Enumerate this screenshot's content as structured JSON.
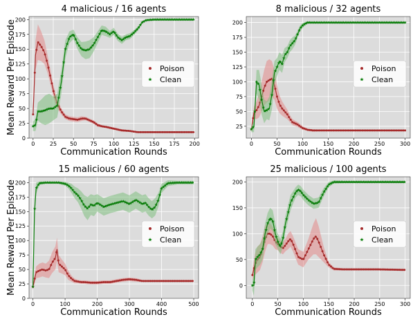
{
  "colors": {
    "poison": "#a52a2a",
    "clean": "#0a7d0a",
    "poison_band": "#e38a8a",
    "clean_band": "#7fbf7f",
    "panel_bg": "#dcdcdc",
    "grid": "#ffffff"
  },
  "chart_data": [
    {
      "type": "line",
      "title": "4 malicious / 16 agents",
      "xlabel": "Communication Rounds",
      "ylabel": "Mean Reward Per Episode",
      "xlim": [
        -5,
        205
      ],
      "ylim": [
        0,
        205
      ],
      "xticks": [
        0,
        25,
        50,
        75,
        100,
        125,
        150,
        175,
        200
      ],
      "yticks": [
        0,
        25,
        50,
        75,
        100,
        125,
        150,
        175,
        200
      ],
      "grid": true,
      "legend": "right",
      "series": [
        {
          "name": "Poison",
          "marker": "dot",
          "x": [
            0,
            3,
            6,
            10,
            14,
            18,
            22,
            26,
            30,
            35,
            40,
            45,
            50,
            55,
            60,
            65,
            70,
            75,
            80,
            85,
            90,
            100,
            110,
            120,
            130,
            140,
            160,
            180,
            200
          ],
          "y": [
            40,
            140,
            162,
            155,
            145,
            125,
            100,
            75,
            58,
            45,
            36,
            33,
            32,
            31,
            33,
            33,
            30,
            27,
            22,
            20,
            19,
            16,
            13,
            12,
            10,
            10,
            10,
            10,
            10
          ],
          "band": [
            5,
            25,
            30,
            25,
            20,
            15,
            12,
            10,
            8,
            5,
            4,
            4,
            4,
            4,
            4,
            3,
            3,
            3,
            3,
            2,
            2,
            2,
            2,
            1,
            1,
            1,
            1,
            1,
            1
          ]
        },
        {
          "name": "Clean",
          "marker": "star",
          "x": [
            0,
            3,
            6,
            10,
            15,
            20,
            25,
            30,
            35,
            40,
            45,
            50,
            55,
            60,
            65,
            70,
            75,
            80,
            85,
            90,
            95,
            100,
            105,
            110,
            115,
            120,
            125,
            130,
            135,
            140,
            150,
            160,
            180,
            200
          ],
          "y": [
            20,
            22,
            45,
            45,
            47,
            50,
            50,
            55,
            95,
            150,
            170,
            175,
            160,
            150,
            148,
            150,
            158,
            170,
            182,
            180,
            175,
            180,
            170,
            165,
            170,
            172,
            178,
            185,
            195,
            199,
            200,
            200,
            200,
            200
          ],
          "band": [
            8,
            10,
            15,
            20,
            25,
            25,
            20,
            20,
            20,
            15,
            10,
            8,
            10,
            12,
            15,
            15,
            12,
            10,
            8,
            8,
            6,
            6,
            6,
            6,
            5,
            5,
            4,
            3,
            2,
            1,
            1,
            1,
            1,
            1
          ]
        }
      ]
    },
    {
      "type": "line",
      "title": "8 malicious / 32 agents",
      "xlabel": "Communication Rounds",
      "ylabel": "",
      "xlim": [
        -10,
        310
      ],
      "ylim": [
        5,
        210
      ],
      "xticks": [
        0,
        50,
        100,
        150,
        200,
        250,
        300
      ],
      "yticks": [
        25,
        50,
        75,
        100,
        125,
        150,
        175,
        200
      ],
      "grid": true,
      "legend": "right",
      "series": [
        {
          "name": "Poison",
          "marker": "dot",
          "x": [
            0,
            5,
            10,
            15,
            20,
            25,
            30,
            35,
            40,
            45,
            50,
            55,
            60,
            65,
            70,
            75,
            80,
            90,
            100,
            110,
            120,
            140,
            160,
            200,
            250,
            300
          ],
          "y": [
            20,
            48,
            52,
            60,
            75,
            90,
            100,
            103,
            105,
            95,
            75,
            62,
            55,
            50,
            45,
            38,
            32,
            28,
            22,
            19,
            18,
            18,
            18,
            18,
            18,
            18
          ],
          "band": [
            5,
            10,
            15,
            20,
            25,
            30,
            35,
            35,
            30,
            25,
            20,
            15,
            12,
            10,
            8,
            6,
            5,
            4,
            3,
            2,
            2,
            1,
            1,
            1,
            1,
            1
          ]
        },
        {
          "name": "Clean",
          "marker": "star",
          "x": [
            0,
            5,
            10,
            15,
            20,
            25,
            30,
            35,
            40,
            45,
            50,
            55,
            60,
            65,
            70,
            75,
            80,
            85,
            90,
            95,
            100,
            105,
            110,
            120,
            140,
            160,
            200,
            250,
            300
          ],
          "y": [
            20,
            25,
            100,
            95,
            70,
            50,
            52,
            55,
            78,
            115,
            125,
            135,
            130,
            145,
            150,
            160,
            165,
            170,
            180,
            190,
            195,
            198,
            200,
            200,
            200,
            200,
            200,
            200,
            200
          ],
          "band": [
            5,
            10,
            20,
            25,
            25,
            20,
            15,
            20,
            25,
            20,
            15,
            15,
            15,
            12,
            10,
            10,
            10,
            8,
            6,
            5,
            4,
            3,
            2,
            1,
            1,
            1,
            1,
            1,
            1
          ]
        }
      ]
    },
    {
      "type": "line",
      "title": "15 malicious / 60 agents",
      "xlabel": "Communication Rounds",
      "ylabel": "Mean Reward Per Episode",
      "xlim": [
        -12,
        515
      ],
      "ylim": [
        0,
        210
      ],
      "xticks": [
        0,
        100,
        200,
        300,
        400,
        500
      ],
      "yticks": [
        0,
        25,
        50,
        75,
        100,
        125,
        150,
        175,
        200
      ],
      "grid": true,
      "legend": "right",
      "series": [
        {
          "name": "Poison",
          "marker": "dot",
          "x": [
            0,
            10,
            20,
            30,
            40,
            50,
            60,
            70,
            75,
            80,
            90,
            100,
            110,
            120,
            130,
            140,
            150,
            160,
            180,
            200,
            220,
            240,
            260,
            280,
            300,
            320,
            340,
            360,
            400,
            450,
            500
          ],
          "y": [
            20,
            45,
            48,
            50,
            48,
            50,
            62,
            70,
            85,
            60,
            55,
            50,
            40,
            34,
            30,
            29,
            28,
            28,
            27,
            27,
            28,
            28,
            30,
            32,
            33,
            32,
            30,
            30,
            30,
            30,
            30
          ],
          "band": [
            5,
            10,
            12,
            12,
            12,
            15,
            18,
            20,
            20,
            15,
            12,
            10,
            8,
            5,
            4,
            3,
            3,
            3,
            3,
            3,
            3,
            3,
            3,
            3,
            3,
            3,
            2,
            2,
            2,
            2,
            2
          ]
        },
        {
          "name": "Clean",
          "marker": "star",
          "x": [
            0,
            5,
            10,
            20,
            40,
            60,
            80,
            100,
            110,
            120,
            130,
            140,
            150,
            160,
            170,
            180,
            190,
            200,
            220,
            240,
            260,
            280,
            300,
            320,
            340,
            350,
            360,
            370,
            380,
            390,
            400,
            420,
            450,
            500
          ],
          "y": [
            20,
            150,
            190,
            199,
            200,
            200,
            200,
            198,
            195,
            190,
            183,
            178,
            170,
            160,
            155,
            162,
            160,
            165,
            158,
            162,
            165,
            168,
            163,
            170,
            163,
            165,
            158,
            153,
            158,
            170,
            190,
            199,
            200,
            200
          ],
          "band": [
            5,
            20,
            10,
            3,
            2,
            2,
            2,
            3,
            5,
            8,
            10,
            12,
            15,
            18,
            20,
            18,
            18,
            15,
            15,
            15,
            15,
            15,
            15,
            15,
            15,
            15,
            15,
            15,
            15,
            12,
            8,
            5,
            3,
            3
          ]
        }
      ]
    },
    {
      "type": "line",
      "title": "25 malicious / 100 agents",
      "xlabel": "Communication Rounds",
      "ylabel": "",
      "xlim": [
        -12,
        310
      ],
      "ylim": [
        -25,
        210
      ],
      "xticks": [
        0,
        50,
        100,
        150,
        200,
        250,
        300
      ],
      "yticks": [
        0,
        50,
        100,
        150,
        200
      ],
      "grid": true,
      "legend": "right",
      "series": [
        {
          "name": "Poison",
          "marker": "dot",
          "x": [
            0,
            5,
            10,
            15,
            20,
            25,
            30,
            35,
            40,
            45,
            50,
            55,
            60,
            65,
            70,
            75,
            80,
            90,
            100,
            110,
            120,
            125,
            130,
            140,
            150,
            160,
            180,
            200,
            250,
            300
          ],
          "y": [
            20,
            40,
            50,
            55,
            70,
            90,
            100,
            100,
            95,
            85,
            80,
            75,
            72,
            78,
            85,
            90,
            80,
            55,
            50,
            70,
            90,
            95,
            85,
            60,
            40,
            32,
            31,
            31,
            31,
            30
          ],
          "band": [
            10,
            20,
            25,
            25,
            25,
            25,
            20,
            20,
            18,
            15,
            12,
            12,
            12,
            12,
            15,
            15,
            15,
            15,
            15,
            20,
            30,
            35,
            30,
            15,
            5,
            3,
            2,
            2,
            2,
            2
          ]
        },
        {
          "name": "Clean",
          "marker": "star",
          "x": [
            0,
            3,
            6,
            10,
            15,
            20,
            25,
            30,
            35,
            40,
            45,
            50,
            55,
            60,
            65,
            70,
            75,
            80,
            85,
            90,
            95,
            100,
            110,
            120,
            130,
            140,
            150,
            160,
            180,
            200,
            250,
            300
          ],
          "y": [
            0,
            0,
            50,
            55,
            60,
            70,
            100,
            120,
            130,
            125,
            100,
            85,
            75,
            90,
            120,
            140,
            160,
            170,
            180,
            185,
            182,
            175,
            165,
            158,
            160,
            180,
            195,
            200,
            200,
            200,
            200,
            200
          ],
          "band": [
            10,
            20,
            20,
            20,
            20,
            20,
            20,
            20,
            20,
            20,
            20,
            15,
            15,
            15,
            15,
            15,
            15,
            12,
            10,
            10,
            10,
            10,
            10,
            10,
            10,
            8,
            5,
            3,
            2,
            2,
            2,
            2
          ]
        }
      ]
    }
  ]
}
